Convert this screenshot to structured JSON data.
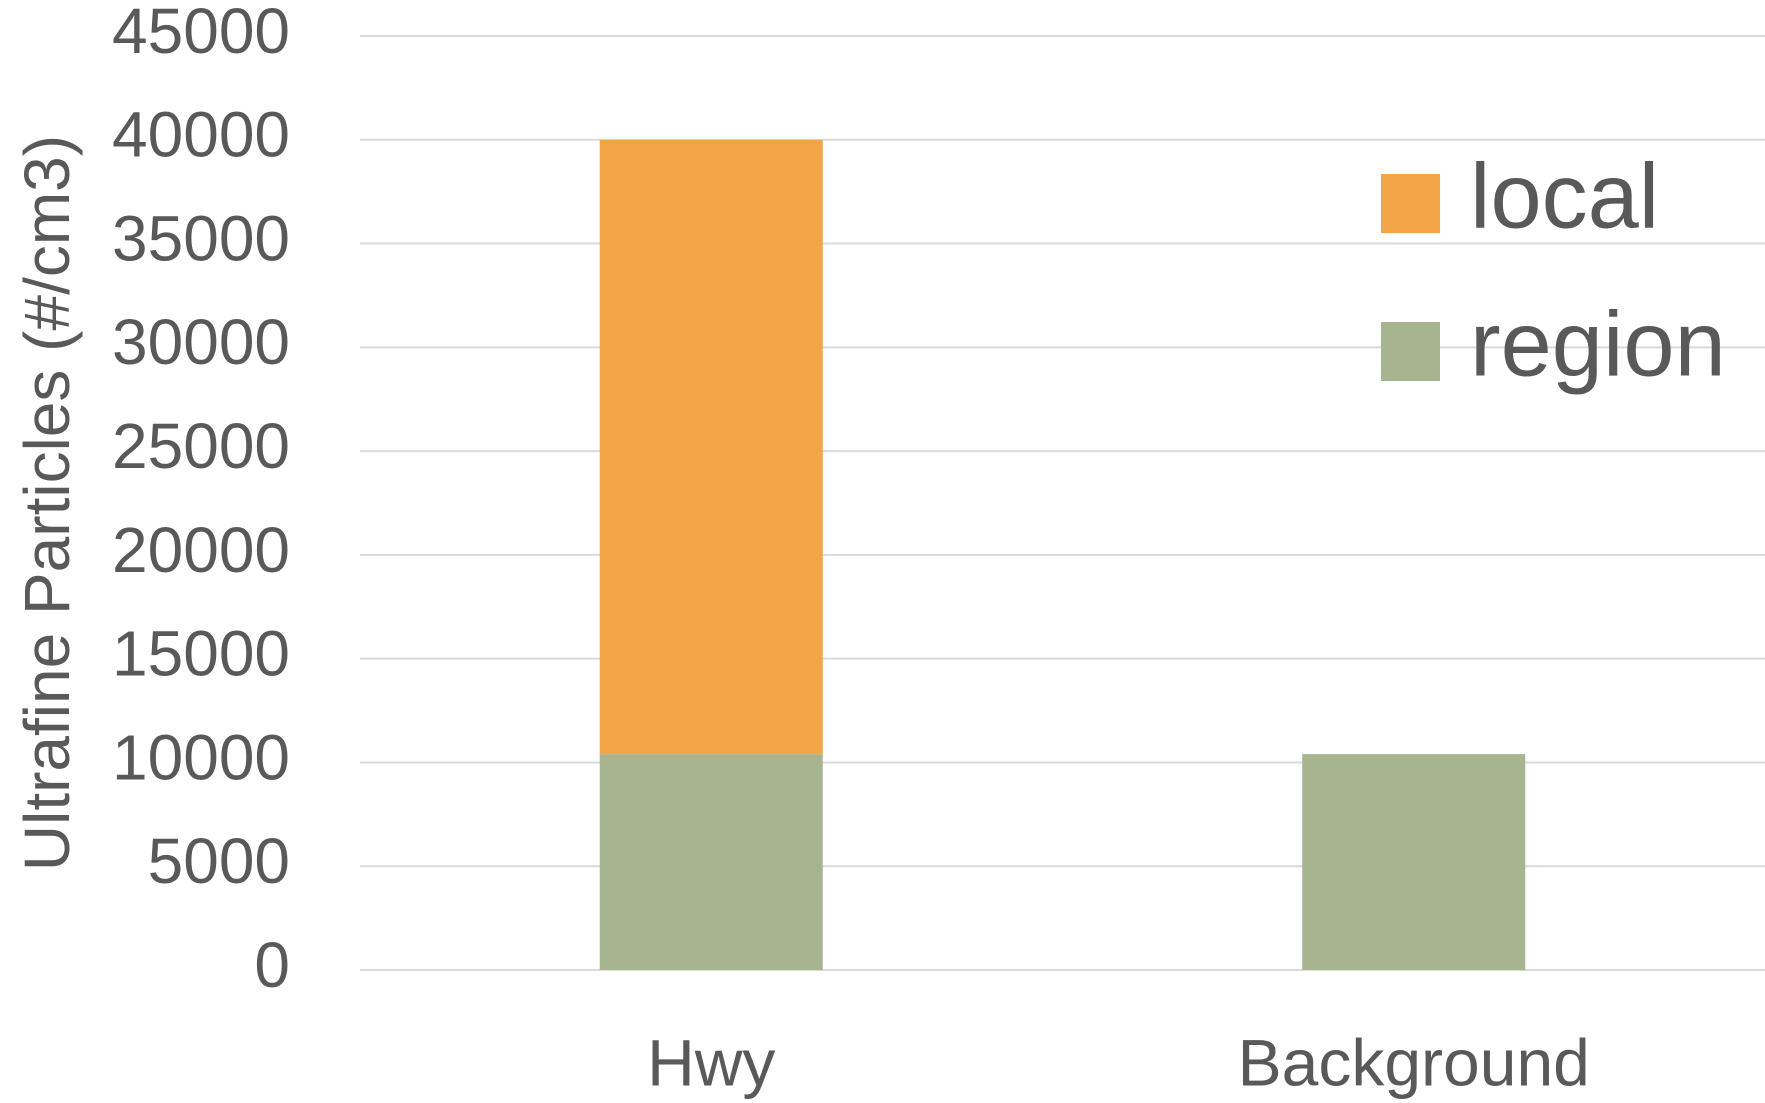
{
  "chart_data": {
    "type": "stacked-bar",
    "y_label": "Ultrafine Particles  (#/cm3)",
    "categories": [
      "Hwy",
      "Background"
    ],
    "series": [
      {
        "name": "region",
        "color": "#a6b490",
        "values": [
          10400,
          10400
        ]
      },
      {
        "name": "local",
        "color": "#f2a446",
        "values": [
          29600,
          0
        ]
      }
    ],
    "ylim": [
      0,
      45000
    ],
    "yticks": [
      0,
      5000,
      10000,
      15000,
      20000,
      25000,
      30000,
      35000,
      40000,
      45000
    ],
    "grid": true,
    "legend": "top-right"
  }
}
